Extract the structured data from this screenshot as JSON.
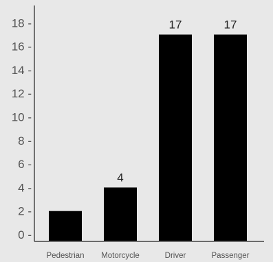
{
  "chart_data": {
    "type": "bar",
    "title": "",
    "xlabel": "",
    "ylabel": "",
    "categories": [
      "Pedestrian",
      "Motorcycle",
      "Driver",
      "Passenger"
    ],
    "values": [
      2,
      4,
      17,
      17
    ],
    "data_labels": [
      "",
      "4",
      "17",
      "17"
    ],
    "ylim": [
      0,
      19
    ],
    "yticks": [
      0,
      2,
      4,
      6,
      8,
      10,
      12,
      14,
      16,
      18
    ],
    "ytick_labels": [
      "0 -",
      "2 -",
      "4 -",
      "6 -",
      "8 -",
      "10 -",
      "12 -",
      "14 -",
      "16 -",
      "18 -"
    ],
    "grid": false,
    "legend": "none",
    "colors": {
      "bar": "#000000",
      "background": "#e8e8e8",
      "axis": "#222222",
      "text": "#555555"
    }
  }
}
